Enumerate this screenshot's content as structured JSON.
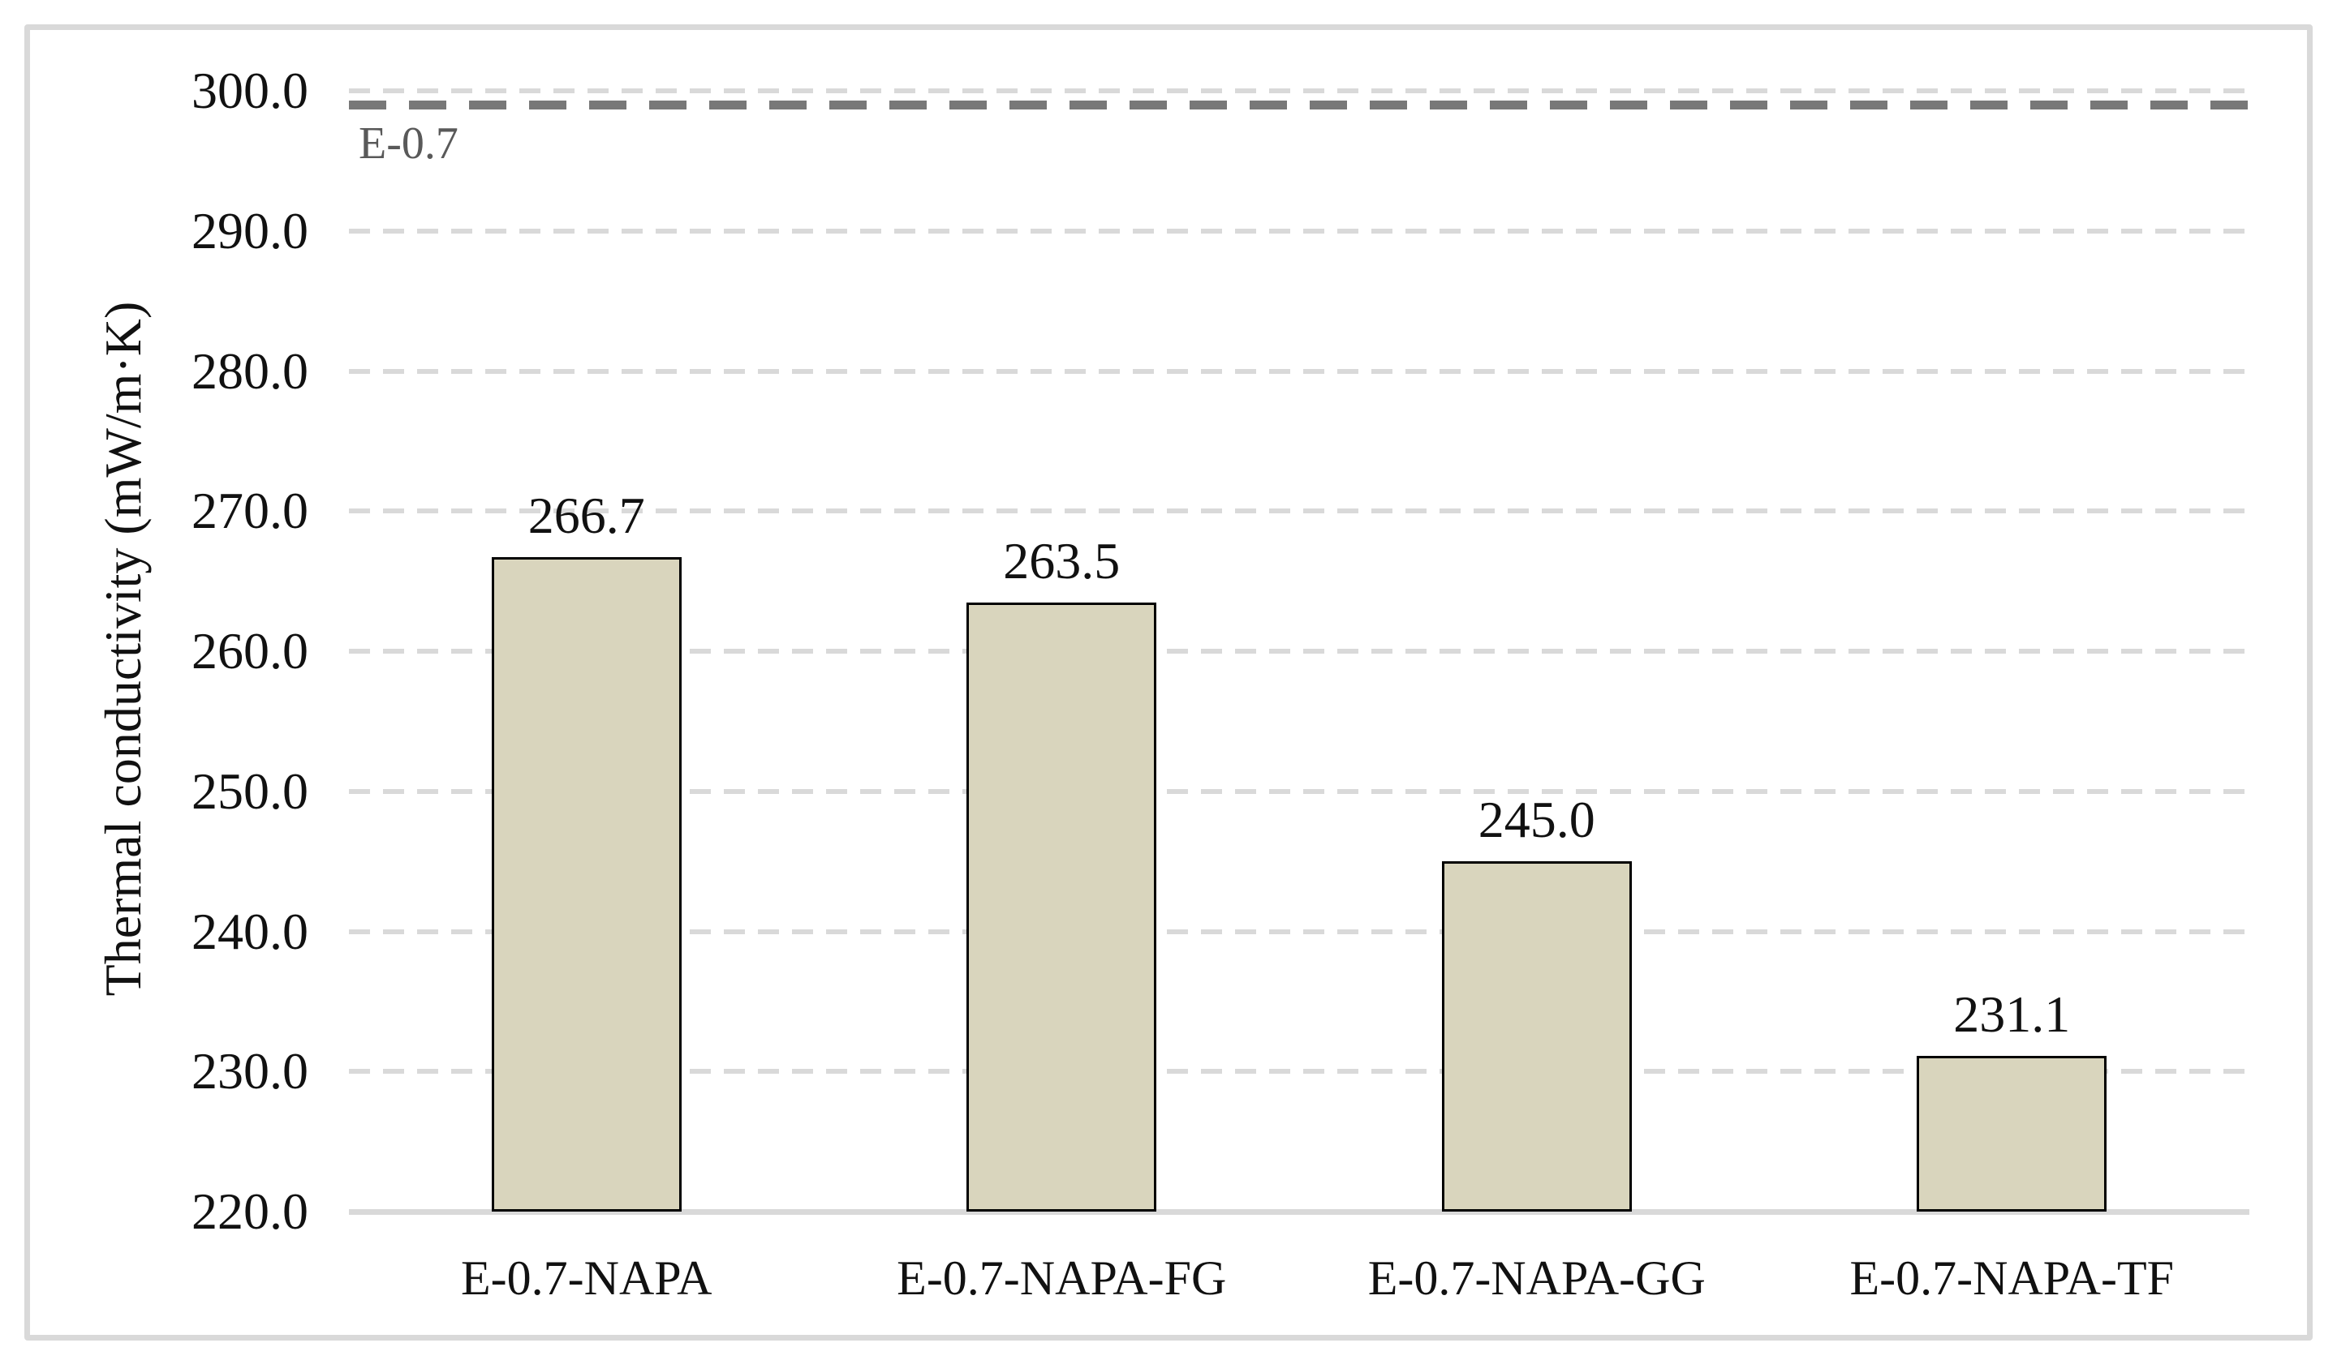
{
  "chart_data": {
    "type": "bar",
    "title": "",
    "categories": [
      "E-0.7-NAPA",
      "E-0.7-NAPA-FG",
      "E-0.7-NAPA-GG",
      "E-0.7-NAPA-TF"
    ],
    "values": [
      266.7,
      263.5,
      245.0,
      231.1
    ],
    "data_labels": [
      "266.7",
      "263.5",
      "245.0",
      "231.1"
    ],
    "xlabel": "",
    "ylabel": "Thermal conductivity (mW/m·K)",
    "ylim": [
      220,
      300
    ],
    "yticks": [
      220,
      230,
      240,
      250,
      260,
      270,
      280,
      290,
      300
    ],
    "ytick_labels": [
      "220.0",
      "230.0",
      "240.0",
      "250.0",
      "260.0",
      "270.0",
      "280.0",
      "290.0",
      "300.0"
    ],
    "grid": "horizontal-dashed",
    "legend_position": "none",
    "reference_line": {
      "label": "E-0.7",
      "value": 299.0,
      "style": "dashed"
    },
    "colors": {
      "bar_fill": "#d9d5bd",
      "bar_border": "#000000",
      "gridline": "#d9d9d9",
      "axis_line": "#d9d9d9",
      "reference_line": "#787878",
      "reference_label": "#595959",
      "tick_text": "#111111",
      "frame_border": "#d9d9d9"
    }
  }
}
